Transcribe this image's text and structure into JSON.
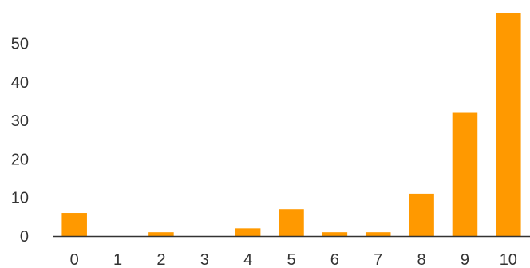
{
  "chart_data": {
    "type": "bar",
    "categories": [
      "0",
      "1",
      "2",
      "3",
      "4",
      "5",
      "6",
      "7",
      "8",
      "9",
      "10"
    ],
    "values": [
      6,
      0,
      1,
      0,
      2,
      7,
      1,
      1,
      11,
      32,
      58
    ],
    "ylim": [
      0,
      58
    ],
    "yticks": [
      0,
      10,
      20,
      30,
      40,
      50
    ],
    "grid": false,
    "legend": "none",
    "bar_color": "#ff9900",
    "axis_color": "#333333"
  }
}
